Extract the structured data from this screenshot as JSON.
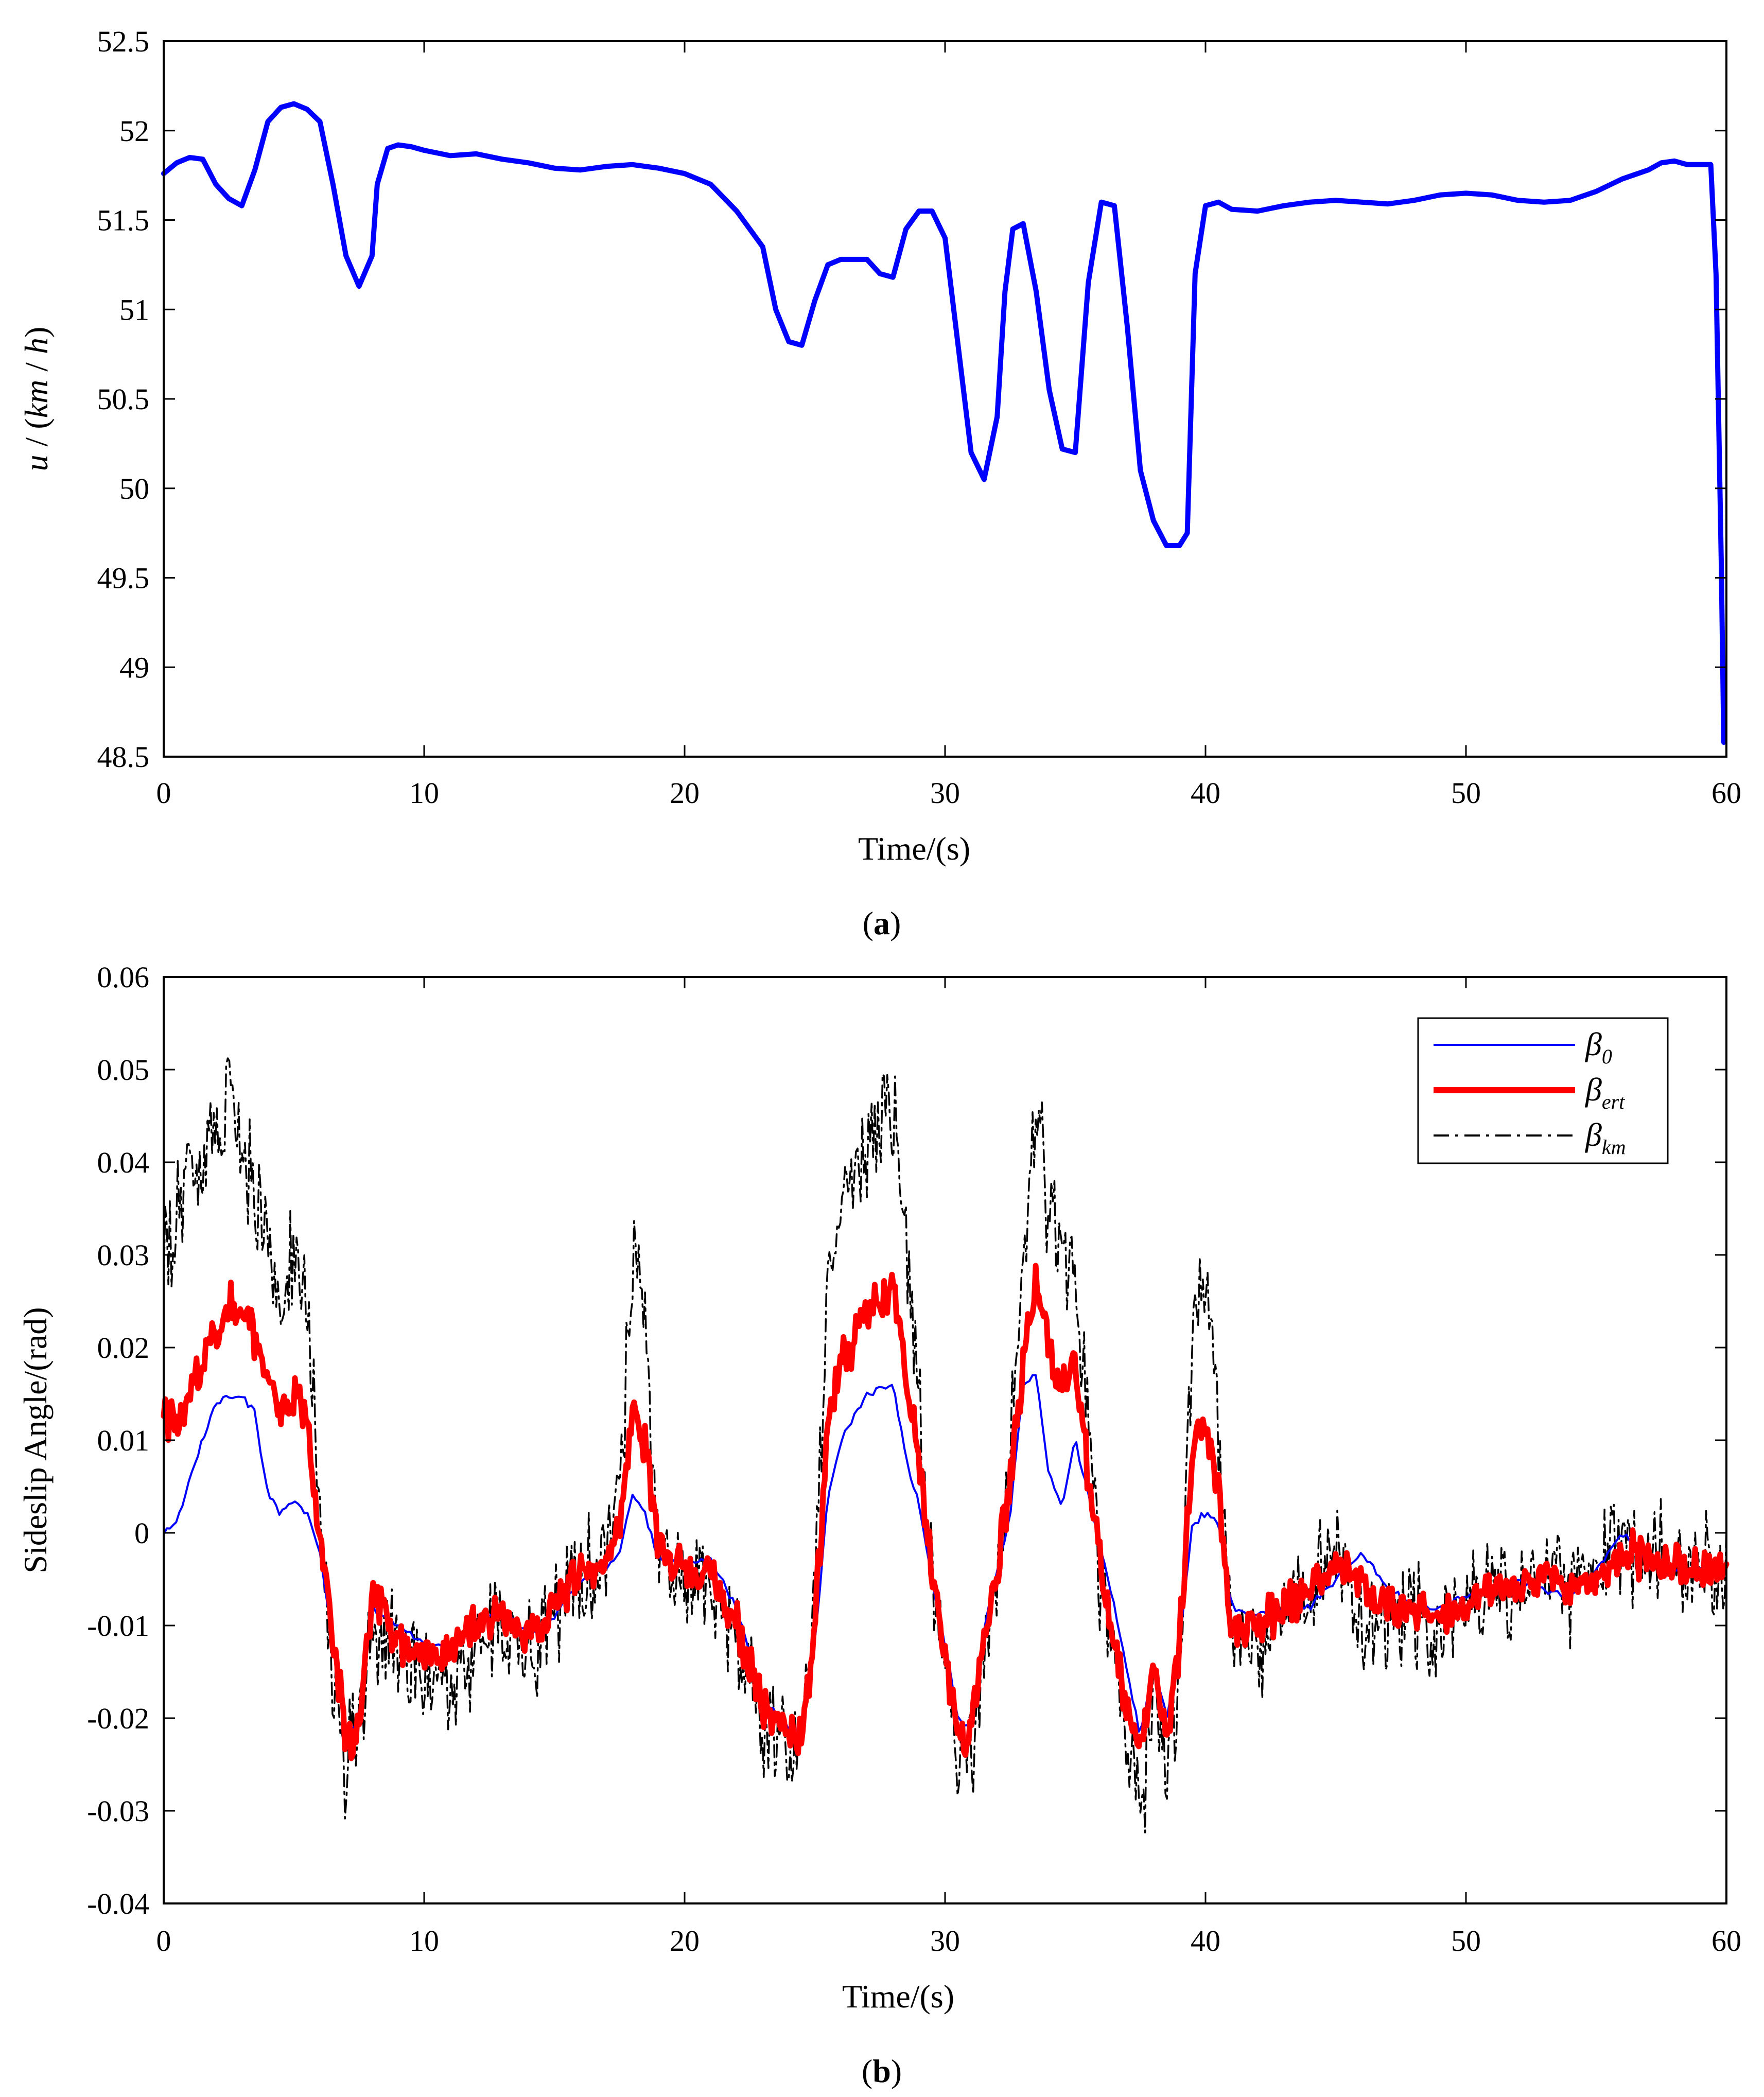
{
  "chart_data": [
    {
      "type": "line",
      "panel": "a",
      "caption_label": "a",
      "xlabel": "Time/(s)",
      "ylabel": "u / (km / h)",
      "ylabel_parts": [
        "u",
        " / (",
        "km",
        " / ",
        "h",
        ")"
      ],
      "xlim": [
        0,
        60
      ],
      "ylim": [
        48.5,
        52.5
      ],
      "xticks": [
        0,
        10,
        20,
        30,
        40,
        50,
        60
      ],
      "xtick_labels": [
        "0",
        "10",
        "20",
        "30",
        "40",
        "50",
        "60"
      ],
      "yticks": [
        48.5,
        49,
        49.5,
        50,
        50.5,
        51,
        51.5,
        52,
        52.5
      ],
      "ytick_labels": [
        "48.5",
        "49",
        "49.5",
        "50",
        "50.5",
        "51",
        "51.5",
        "52",
        "52.5"
      ],
      "grid": false,
      "series": [
        {
          "name": "u",
          "color": "#0000ff",
          "x": [
            0,
            0.5,
            1,
            1.5,
            2,
            2.5,
            3,
            3.5,
            4,
            4.5,
            5,
            5.5,
            6,
            6.5,
            7,
            7.5,
            8,
            8.2,
            8.6,
            9,
            9.5,
            10,
            11,
            12,
            13,
            14,
            15,
            16,
            17,
            18,
            19,
            20,
            21,
            22,
            23,
            23.5,
            24,
            24.5,
            25,
            25.5,
            26,
            27,
            27.5,
            28,
            28.5,
            29,
            29.5,
            30,
            30.5,
            31,
            31.5,
            32,
            32.3,
            32.6,
            33,
            33.5,
            34,
            34.5,
            35,
            35.5,
            36,
            36.5,
            37,
            37.5,
            38,
            38.5,
            39,
            39.3,
            39.6,
            40,
            40.5,
            41,
            42,
            43,
            44,
            45,
            46,
            47,
            48,
            49,
            50,
            51,
            52,
            53,
            54,
            55,
            56,
            57,
            57.5,
            58,
            58.5,
            59,
            59.4,
            59.6,
            59.8,
            59.9
          ],
          "y": [
            51.76,
            51.82,
            51.85,
            51.84,
            51.7,
            51.62,
            51.58,
            51.78,
            52.05,
            52.13,
            52.15,
            52.12,
            52.05,
            51.7,
            51.3,
            51.13,
            51.3,
            51.7,
            51.9,
            51.92,
            51.91,
            51.89,
            51.86,
            51.87,
            51.84,
            51.82,
            51.79,
            51.78,
            51.8,
            51.81,
            51.79,
            51.76,
            51.7,
            51.55,
            51.35,
            51.0,
            50.82,
            50.8,
            51.05,
            51.25,
            51.28,
            51.28,
            51.2,
            51.18,
            51.45,
            51.55,
            51.55,
            51.4,
            50.8,
            50.2,
            50.05,
            50.4,
            51.1,
            51.45,
            51.48,
            51.1,
            50.55,
            50.22,
            50.2,
            51.15,
            51.6,
            51.58,
            50.9,
            50.1,
            49.82,
            49.68,
            49.68,
            49.75,
            51.2,
            51.58,
            51.6,
            51.56,
            51.55,
            51.58,
            51.6,
            51.61,
            51.6,
            51.59,
            51.61,
            51.64,
            51.65,
            51.64,
            51.61,
            51.6,
            51.61,
            51.66,
            51.73,
            51.78,
            51.82,
            51.83,
            51.81,
            51.81,
            51.81,
            51.2,
            49.6,
            48.58
          ]
        }
      ]
    },
    {
      "type": "line",
      "panel": "b",
      "caption_label": "b",
      "xlabel": "Time/(s)",
      "ylabel": "Sideslip Angle/(rad)",
      "xlim": [
        0,
        60
      ],
      "ylim": [
        -0.04,
        0.06
      ],
      "xticks": [
        0,
        10,
        20,
        30,
        40,
        50,
        60
      ],
      "xtick_labels": [
        "0",
        "10",
        "20",
        "30",
        "40",
        "50",
        "60"
      ],
      "yticks": [
        -0.04,
        -0.03,
        -0.02,
        -0.01,
        0,
        0.01,
        0.02,
        0.03,
        0.04,
        0.05,
        0.06
      ],
      "ytick_labels": [
        "-0.04",
        "-0.03",
        "-0.02",
        "-0.01",
        "0",
        "0.01",
        "0.02",
        "0.03",
        "0.04",
        "0.05",
        "0.06"
      ],
      "grid": false,
      "legend_position": "top-right",
      "series": [
        {
          "name": "β0",
          "legend_symbol": "β",
          "legend_subscript": "0",
          "color": "#0000ff",
          "style": "thin",
          "x": [
            0,
            0.5,
            1,
            1.5,
            2,
            2.5,
            3,
            3.5,
            4,
            4.5,
            5,
            5.5,
            6,
            6.5,
            7,
            7.5,
            8,
            9,
            10,
            11,
            12,
            13,
            14,
            15,
            16,
            17,
            17.5,
            18,
            18.5,
            19,
            20,
            21,
            22,
            23,
            24,
            24.5,
            25,
            25.5,
            26,
            27,
            28,
            28.5,
            29,
            29.5,
            30,
            30.5,
            31,
            31.5,
            32,
            32.5,
            33,
            33.5,
            34,
            34.5,
            35,
            35.5,
            36,
            36.5,
            37,
            37.5,
            38,
            38.5,
            39,
            39.5,
            40,
            40.5,
            41,
            42,
            43,
            44,
            45,
            46,
            47,
            48,
            49,
            50,
            51,
            52,
            53,
            54,
            55,
            56,
            57,
            58,
            59,
            60
          ],
          "y": [
            0,
            0.001,
            0.006,
            0.01,
            0.014,
            0.015,
            0.0148,
            0.013,
            0.004,
            0.002,
            0.0035,
            0.002,
            -0.002,
            -0.012,
            -0.022,
            -0.02,
            -0.008,
            -0.01,
            -0.012,
            -0.012,
            -0.01,
            -0.008,
            -0.011,
            -0.009,
            -0.005,
            -0.004,
            -0.002,
            0.0042,
            0.002,
            -0.003,
            -0.003,
            -0.003,
            -0.008,
            -0.018,
            -0.021,
            -0.022,
            -0.012,
            0.004,
            0.01,
            0.015,
            0.016,
            0.008,
            0.003,
            -0.005,
            -0.012,
            -0.02,
            -0.021,
            -0.01,
            -0.004,
            0.002,
            0.016,
            0.017,
            0.006,
            0.003,
            0.01,
            0.004,
            -0.002,
            -0.008,
            -0.015,
            -0.022,
            -0.014,
            -0.02,
            -0.012,
            0.001,
            0.002,
            0.001,
            -0.008,
            -0.009,
            -0.008,
            -0.008,
            -0.005,
            -0.002,
            -0.006,
            -0.008,
            -0.008,
            -0.007,
            -0.006,
            -0.005,
            -0.006,
            -0.007,
            -0.004,
            0.0,
            -0.003,
            -0.004,
            -0.004,
            -0.004
          ]
        },
        {
          "name": "βert",
          "legend_symbol": "β",
          "legend_subscript": "ert",
          "color": "#ff0000",
          "style": "thick",
          "x": [
            0,
            0.5,
            1,
            1.5,
            2,
            2.5,
            3,
            3.5,
            4,
            4.5,
            5,
            5.5,
            6,
            6.5,
            7,
            7.5,
            8,
            9,
            10,
            11,
            12,
            13,
            14,
            15,
            16,
            17,
            17.5,
            18,
            18.5,
            19,
            20,
            21,
            22,
            23,
            24,
            24.5,
            25,
            25.5,
            26,
            27,
            28,
            28.5,
            29,
            29.5,
            30,
            30.5,
            31,
            31.5,
            32,
            32.5,
            33,
            33.5,
            34,
            34.5,
            35,
            35.5,
            36,
            36.5,
            37,
            37.5,
            38,
            38.5,
            39,
            39.5,
            40,
            40.5,
            41,
            42,
            43,
            44,
            45,
            46,
            47,
            48,
            49,
            50,
            51,
            52,
            53,
            54,
            55,
            56,
            57,
            58,
            59,
            60
          ],
          "y": [
            0.013,
            0.011,
            0.015,
            0.019,
            0.022,
            0.025,
            0.024,
            0.021,
            0.017,
            0.013,
            0.015,
            0.012,
            -0.001,
            -0.012,
            -0.022,
            -0.022,
            -0.006,
            -0.012,
            -0.013,
            -0.013,
            -0.01,
            -0.009,
            -0.011,
            -0.008,
            -0.004,
            -0.003,
            0.0,
            0.013,
            0.01,
            -0.002,
            -0.004,
            -0.004,
            -0.01,
            -0.019,
            -0.022,
            -0.022,
            -0.01,
            0.012,
            0.018,
            0.024,
            0.026,
            0.018,
            0.008,
            -0.004,
            -0.012,
            -0.023,
            -0.021,
            -0.01,
            -0.004,
            0.006,
            0.018,
            0.028,
            0.02,
            0.016,
            0.018,
            0.006,
            -0.004,
            -0.012,
            -0.02,
            -0.024,
            -0.014,
            -0.022,
            -0.012,
            0.01,
            0.012,
            0.004,
            -0.01,
            -0.01,
            -0.008,
            -0.006,
            -0.003,
            -0.006,
            -0.008,
            -0.008,
            -0.009,
            -0.008,
            -0.006,
            -0.006,
            -0.004,
            -0.006,
            -0.005,
            -0.002,
            -0.003,
            -0.004,
            -0.004,
            -0.004
          ]
        },
        {
          "name": "βkm",
          "legend_symbol": "β",
          "legend_subscript": "km",
          "color": "#000000",
          "style": "dash-dot",
          "x": [
            0,
            0.5,
            1,
            1.5,
            2,
            2.5,
            3,
            3.5,
            4,
            4.5,
            5,
            5.5,
            6,
            6.5,
            7,
            7.5,
            8,
            9,
            10,
            11,
            12,
            13,
            14,
            15,
            16,
            17,
            17.5,
            18,
            18.5,
            19,
            20,
            21,
            22,
            23,
            24,
            24.5,
            25,
            25.5,
            26,
            27,
            28,
            28.5,
            29,
            29.5,
            30,
            30.5,
            31,
            31.5,
            32,
            32.5,
            33,
            33.5,
            34,
            34.5,
            35,
            35.5,
            36,
            36.5,
            37,
            37.5,
            38,
            38.5,
            39,
            39.5,
            40,
            40.5,
            41,
            42,
            43,
            44,
            45,
            46,
            47,
            48,
            49,
            50,
            51,
            52,
            53,
            54,
            55,
            56,
            57,
            58,
            59,
            60
          ],
          "y": [
            0.03,
            0.033,
            0.038,
            0.04,
            0.043,
            0.045,
            0.04,
            0.036,
            0.03,
            0.024,
            0.03,
            0.025,
            0.002,
            -0.014,
            -0.025,
            -0.02,
            -0.01,
            -0.014,
            -0.016,
            -0.015,
            -0.012,
            -0.01,
            -0.013,
            -0.01,
            -0.005,
            -0.003,
            0.004,
            0.03,
            0.022,
            -0.002,
            -0.005,
            -0.006,
            -0.012,
            -0.02,
            -0.024,
            -0.022,
            -0.008,
            0.028,
            0.035,
            0.042,
            0.046,
            0.032,
            0.012,
            -0.005,
            -0.014,
            -0.026,
            -0.024,
            -0.012,
            -0.006,
            0.01,
            0.028,
            0.045,
            0.035,
            0.03,
            0.028,
            0.01,
            -0.006,
            -0.014,
            -0.024,
            -0.03,
            -0.017,
            -0.026,
            -0.014,
            0.024,
            0.028,
            0.01,
            -0.012,
            -0.012,
            -0.01,
            -0.006,
            -0.002,
            -0.008,
            -0.01,
            -0.009,
            -0.01,
            -0.008,
            -0.006,
            -0.006,
            -0.003,
            -0.006,
            -0.005,
            -0.001,
            -0.002,
            -0.003,
            -0.004,
            -0.003
          ]
        }
      ]
    }
  ]
}
